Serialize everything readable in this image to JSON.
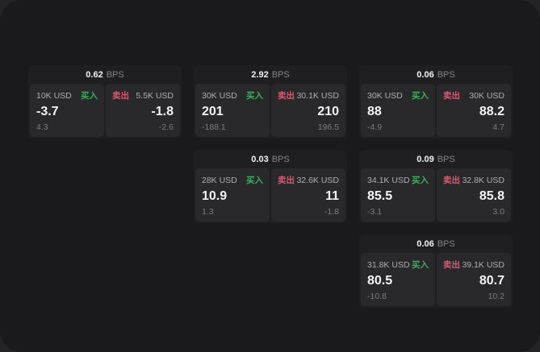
{
  "app": {
    "unit_label": "BPS",
    "buy_label": "买入",
    "sell_label": "卖出"
  },
  "colors": {
    "buy": "#3dae5c",
    "sell": "#d95970",
    "outer_bg": "#242427",
    "app_bg": "#1a1a1c",
    "card_bg": "#1f1f21",
    "panel_bg": "#29292c"
  },
  "cards": [
    {
      "col": 1,
      "row": 1,
      "bps": "0.62",
      "buy": {
        "amount": "10K USD",
        "value": "-3.7",
        "sub": "4.3"
      },
      "sell": {
        "amount": "5.5K USD",
        "value": "-1.8",
        "sub": "-2.6"
      }
    },
    {
      "col": 2,
      "row": 1,
      "bps": "2.92",
      "buy": {
        "amount": "30K USD",
        "value": "201",
        "sub": "-188.1"
      },
      "sell": {
        "amount": "30.1K USD",
        "value": "210",
        "sub": "196.5"
      }
    },
    {
      "col": 3,
      "row": 1,
      "bps": "0.06",
      "buy": {
        "amount": "30K USD",
        "value": "88",
        "sub": "-4.9"
      },
      "sell": {
        "amount": "30K USD",
        "value": "88.2",
        "sub": "4.7"
      }
    },
    {
      "col": 2,
      "row": 2,
      "bps": "0.03",
      "buy": {
        "amount": "28K USD",
        "value": "10.9",
        "sub": "1.3"
      },
      "sell": {
        "amount": "32.6K USD",
        "value": "11",
        "sub": "-1.8"
      }
    },
    {
      "col": 3,
      "row": 2,
      "bps": "0.09",
      "buy": {
        "amount": "34.1K USD",
        "value": "85.5",
        "sub": "-3.1"
      },
      "sell": {
        "amount": "32.8K USD",
        "value": "85.8",
        "sub": "3.0"
      }
    },
    {
      "col": 3,
      "row": 3,
      "bps": "0.06",
      "buy": {
        "amount": "31.8K USD",
        "value": "80.5",
        "sub": "-10.8"
      },
      "sell": {
        "amount": "39.1K USD",
        "value": "80.7",
        "sub": "10.2"
      }
    }
  ]
}
